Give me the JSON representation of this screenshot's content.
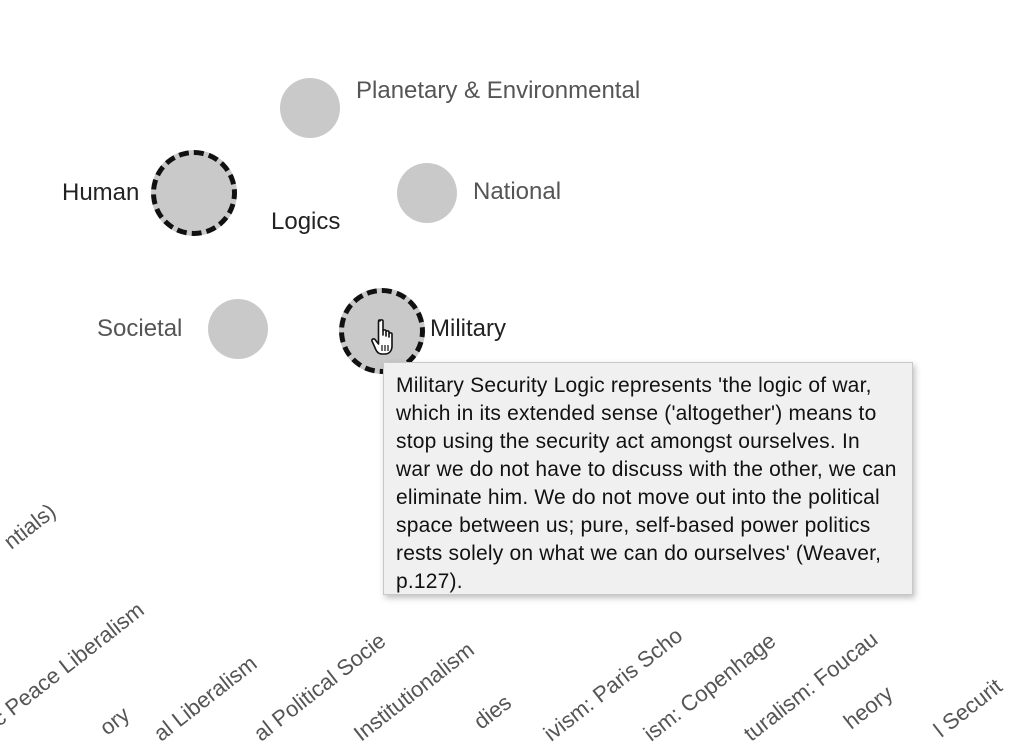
{
  "nodes": {
    "planetary": "Planetary & Environmental",
    "human": "Human",
    "logics": "Logics",
    "national": "National",
    "societal": "Societal",
    "military": "Military"
  },
  "tooltip": {
    "text": "Military Security Logic represents 'the logic of war, which in its extended sense ('altogether') means to stop using the security act amongst ourselves. In war we do not have to discuss with the other, we can eliminate him. We do not move out into the political space between us; pure, self-based power politics rests solely on what we can do ourselves' (Weaver,  p.127)."
  },
  "axis_labels": [
    "ntials)",
    "c Peace Liberalism",
    "ory",
    "al Liberalism",
    "al Political Socie",
    "Institutionalism",
    "dies",
    "ivism: Paris Scho",
    "ism: Copenhage",
    "turalism: Foucau",
    "heory",
    "l Securit"
  ],
  "colors": {
    "node_fill": "#c9c9c9",
    "selected_border": "#111111",
    "tooltip_bg": "#f0f0f0"
  },
  "icons": [
    "hand-pointer-icon"
  ]
}
